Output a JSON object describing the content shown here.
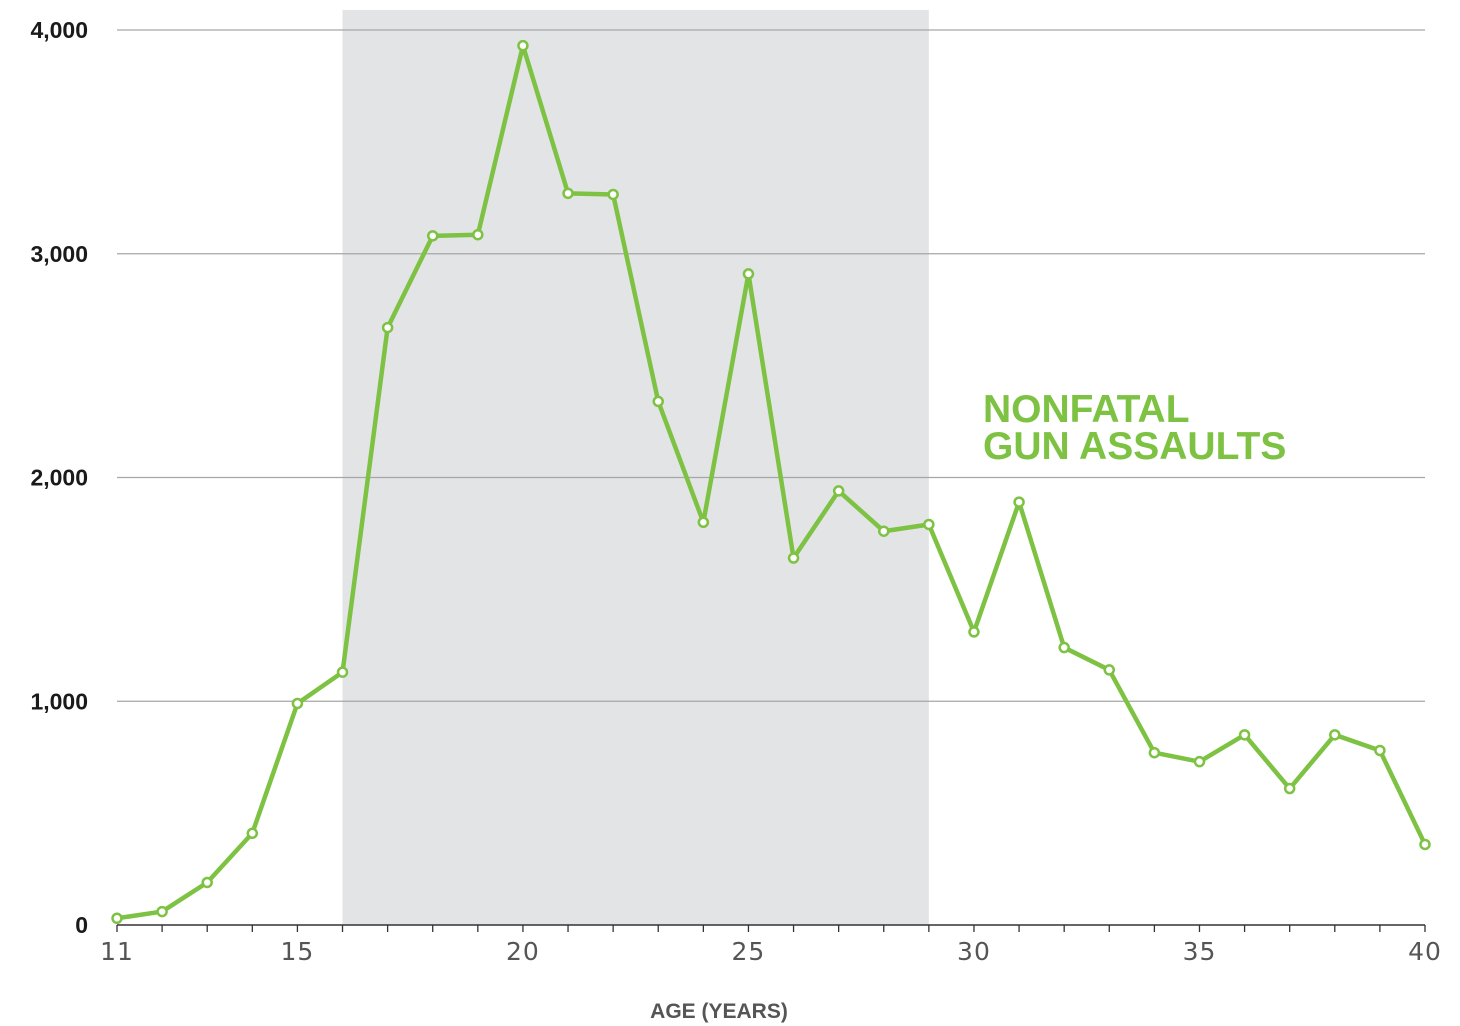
{
  "chart_data": {
    "type": "line",
    "xlabel": "AGE (YEARS)",
    "ylabel": "",
    "xlim": [
      11,
      40
    ],
    "ylim": [
      0,
      4000
    ],
    "yticks": [
      0,
      1000,
      2000,
      3000,
      4000
    ],
    "ytick_labels": [
      "0",
      "1,000",
      "2,000",
      "3,000",
      "4,000"
    ],
    "xticks": [
      11,
      15,
      20,
      25,
      30,
      35,
      40
    ],
    "xtick_labels": [
      "11",
      "15",
      "20",
      "25",
      "30",
      "35",
      "40"
    ],
    "grid": "horizontal",
    "shaded_region": {
      "x_start": 16,
      "x_end": 29,
      "color": "#e3e4e6"
    },
    "annotation": {
      "lines": [
        "NONFATAL",
        "GUN ASSAULTS"
      ],
      "color": "#7dc242"
    },
    "series": [
      {
        "color": "#7dc242",
        "x": [
          11,
          12,
          13,
          14,
          15,
          16,
          17,
          18,
          19,
          20,
          21,
          22,
          23,
          24,
          25,
          26,
          27,
          28,
          29,
          30,
          31,
          32,
          33,
          34,
          35,
          36,
          37,
          38,
          39,
          40
        ],
        "values": [
          30,
          60,
          190,
          410,
          990,
          1130,
          2670,
          3080,
          3085,
          3930,
          3270,
          3265,
          2340,
          1800,
          2910,
          1640,
          1940,
          1760,
          1790,
          1310,
          1890,
          1240,
          1140,
          770,
          730,
          850,
          610,
          850,
          780,
          360
        ]
      }
    ]
  }
}
